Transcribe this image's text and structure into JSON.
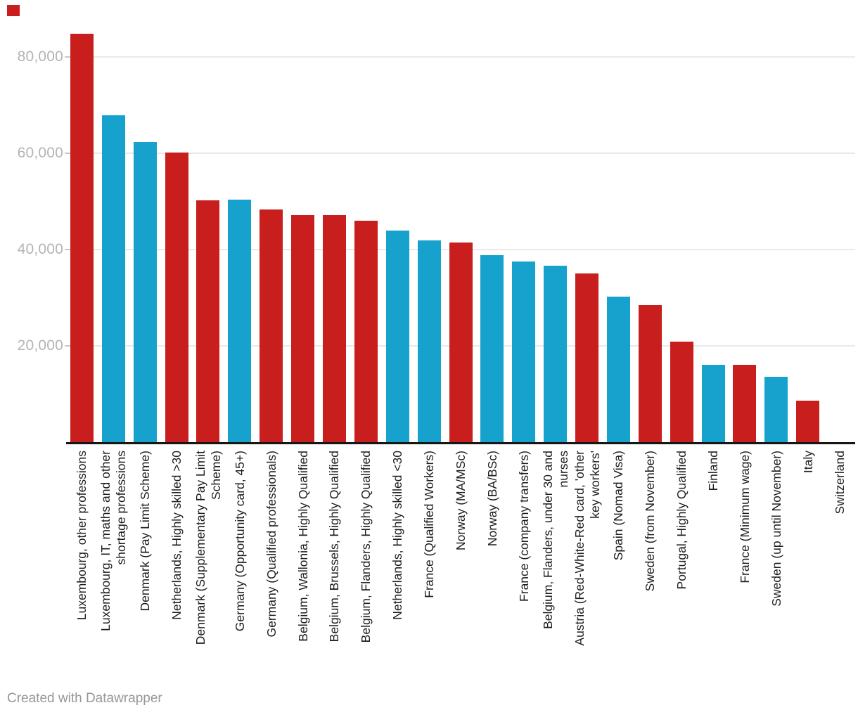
{
  "chart_data": {
    "type": "bar",
    "title": "",
    "legend": "none",
    "grid": "horizontal",
    "ylim": [
      0,
      87000
    ],
    "y_tick_labels": [
      "20,000",
      "40,000",
      "60,000",
      "80,000"
    ],
    "y_tick_values": [
      20000,
      40000,
      60000,
      80000
    ],
    "palette": {
      "red": "#c81f1e",
      "blue": "#17a2cd"
    },
    "categories": [
      {
        "lines": [
          "Luxembourg, other professions"
        ],
        "value": 84800,
        "color": "red"
      },
      {
        "lines": [
          "Luxembourg, IT, maths and other",
          "shortage professions"
        ],
        "value": 67900,
        "color": "blue"
      },
      {
        "lines": [
          "Denmark (Pay Limit Scheme)"
        ],
        "value": 62400,
        "color": "blue"
      },
      {
        "lines": [
          "Netherlands, Highly skilled >30"
        ],
        "value": 60200,
        "color": "red"
      },
      {
        "lines": [
          "Denmark (Supplementary Pay Limit",
          "Scheme)"
        ],
        "value": 50200,
        "color": "red"
      },
      {
        "lines": [
          "Germany (Opportunity card, 45+)"
        ],
        "value": 50300,
        "color": "blue"
      },
      {
        "lines": [
          "Germany (Qualified professionals)"
        ],
        "value": 48300,
        "color": "red"
      },
      {
        "lines": [
          "Belgium, Wallonia, Highly Qualified"
        ],
        "value": 47200,
        "color": "red"
      },
      {
        "lines": [
          "Belgium, Brussels, Highly Qualified"
        ],
        "value": 47200,
        "color": "red"
      },
      {
        "lines": [
          "Belgium, Flanders, Highly Qualified"
        ],
        "value": 46000,
        "color": "red"
      },
      {
        "lines": [
          "Netherlands, Highly skilled <30"
        ],
        "value": 44000,
        "color": "blue"
      },
      {
        "lines": [
          "France (Qualified Workers)"
        ],
        "value": 41900,
        "color": "blue"
      },
      {
        "lines": [
          "Norway (MA/MSc)"
        ],
        "value": 41500,
        "color": "red"
      },
      {
        "lines": [
          "Norway (BA/BSc)"
        ],
        "value": 38800,
        "color": "blue"
      },
      {
        "lines": [
          "France (company transfers)"
        ],
        "value": 37500,
        "color": "blue"
      },
      {
        "lines": [
          "Belgium, Flanders, under 30 and",
          "nurses"
        ],
        "value": 36600,
        "color": "blue"
      },
      {
        "lines": [
          "Austria (Red-White-Red card, 'other",
          "key workers'"
        ],
        "value": 35000,
        "color": "red"
      },
      {
        "lines": [
          "Spain (Nomad Visa)"
        ],
        "value": 30200,
        "color": "blue"
      },
      {
        "lines": [
          "Sweden (from November)"
        ],
        "value": 28500,
        "color": "red"
      },
      {
        "lines": [
          "Portugal, Highly Qualified"
        ],
        "value": 20900,
        "color": "red"
      },
      {
        "lines": [
          "Finland"
        ],
        "value": 16100,
        "color": "blue"
      },
      {
        "lines": [
          "France (Minimum wage)"
        ],
        "value": 16000,
        "color": "red"
      },
      {
        "lines": [
          "Sweden (up until November)"
        ],
        "value": 13600,
        "color": "blue"
      },
      {
        "lines": [
          "Italy"
        ],
        "value": 8600,
        "color": "red"
      },
      {
        "lines": [
          "Switzerland"
        ],
        "value": 0,
        "color": null
      }
    ]
  },
  "footer": {
    "credit": "Created with Datawrapper"
  },
  "marker": {
    "color": "#c81f1e"
  }
}
